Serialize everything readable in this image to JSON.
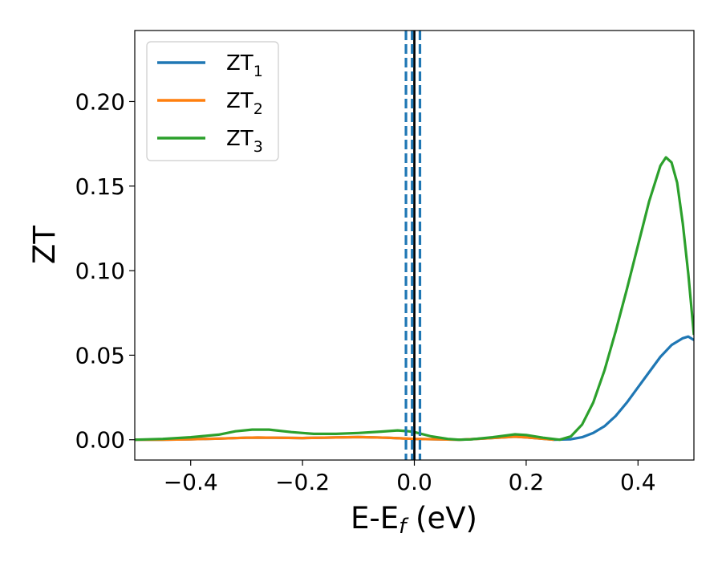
{
  "chart_data": {
    "type": "line",
    "title": "",
    "xlabel": "E-E",
    "xlabel_sub": "f",
    "xlabel_unit": " (eV)",
    "ylabel": "ZT",
    "xlim": [
      -0.5,
      0.5
    ],
    "ylim": [
      -0.012,
      0.242
    ],
    "xticks": [
      -0.4,
      -0.2,
      0.0,
      0.2,
      0.4
    ],
    "xtick_labels": [
      "−0.4",
      "−0.2",
      "0.0",
      "0.2",
      "0.4"
    ],
    "yticks": [
      0.0,
      0.05,
      0.1,
      0.15,
      0.2
    ],
    "ytick_labels": [
      "0.00",
      "0.05",
      "0.10",
      "0.15",
      "0.20"
    ],
    "grid": false,
    "legend_position": "top-left",
    "vlines": [
      {
        "x": 0.0,
        "color": "#000000",
        "style": "solid"
      },
      {
        "x": -0.015,
        "color": "#1f77b4",
        "style": "dashed"
      },
      {
        "x": -0.004,
        "color": "#1f77b4",
        "style": "dashed"
      },
      {
        "x": 0.01,
        "color": "#1f77b4",
        "style": "dashed"
      }
    ],
    "series": [
      {
        "name": "ZT",
        "subscript": "1",
        "color": "#1f77b4",
        "x": [
          -0.5,
          -0.45,
          -0.4,
          -0.35,
          -0.3,
          -0.28,
          -0.25,
          -0.2,
          -0.15,
          -0.1,
          -0.05,
          0.0,
          0.05,
          0.08,
          0.1,
          0.15,
          0.18,
          0.2,
          0.25,
          0.28,
          0.3,
          0.32,
          0.34,
          0.36,
          0.38,
          0.4,
          0.42,
          0.44,
          0.46,
          0.48,
          0.49,
          0.5
        ],
        "y": [
          0.0,
          0.0,
          0.0003,
          0.0007,
          0.0012,
          0.0013,
          0.0012,
          0.001,
          0.0013,
          0.0016,
          0.0012,
          0.0005,
          0.0002,
          0.0,
          0.0003,
          0.0012,
          0.0018,
          0.0014,
          0.0,
          0.0003,
          0.0015,
          0.004,
          0.008,
          0.014,
          0.022,
          0.031,
          0.04,
          0.049,
          0.056,
          0.06,
          0.061,
          0.059
        ]
      },
      {
        "name": "ZT",
        "subscript": "2",
        "color": "#ff7f0e",
        "x": [
          -0.5,
          -0.45,
          -0.4,
          -0.35,
          -0.3,
          -0.28,
          -0.25,
          -0.2,
          -0.15,
          -0.1,
          -0.05,
          0.0,
          0.05,
          0.08,
          0.1,
          0.15,
          0.18,
          0.2,
          0.25
        ],
        "y": [
          0.0,
          0.0,
          0.0003,
          0.0007,
          0.0012,
          0.0013,
          0.0012,
          0.001,
          0.0013,
          0.0016,
          0.0012,
          0.0005,
          0.0002,
          0.0,
          0.0003,
          0.0012,
          0.0018,
          0.0014,
          0.0
        ]
      },
      {
        "name": "ZT",
        "subscript": "3",
        "color": "#2ca02c",
        "x": [
          -0.5,
          -0.45,
          -0.4,
          -0.35,
          -0.32,
          -0.29,
          -0.26,
          -0.22,
          -0.18,
          -0.14,
          -0.1,
          -0.06,
          -0.03,
          -0.01,
          0.0,
          0.03,
          0.06,
          0.08,
          0.1,
          0.14,
          0.18,
          0.2,
          0.23,
          0.26,
          0.28,
          0.3,
          0.32,
          0.34,
          0.36,
          0.38,
          0.4,
          0.42,
          0.44,
          0.45,
          0.46,
          0.47,
          0.48,
          0.49,
          0.5
        ],
        "y": [
          0.0,
          0.0005,
          0.0015,
          0.003,
          0.005,
          0.006,
          0.006,
          0.0045,
          0.0035,
          0.0035,
          0.004,
          0.0048,
          0.0055,
          0.005,
          0.0045,
          0.002,
          0.0005,
          0.0,
          0.0002,
          0.0015,
          0.0032,
          0.0028,
          0.0012,
          0.0,
          0.002,
          0.009,
          0.022,
          0.041,
          0.064,
          0.089,
          0.115,
          0.141,
          0.162,
          0.167,
          0.164,
          0.152,
          0.128,
          0.098,
          0.062
        ]
      }
    ]
  }
}
